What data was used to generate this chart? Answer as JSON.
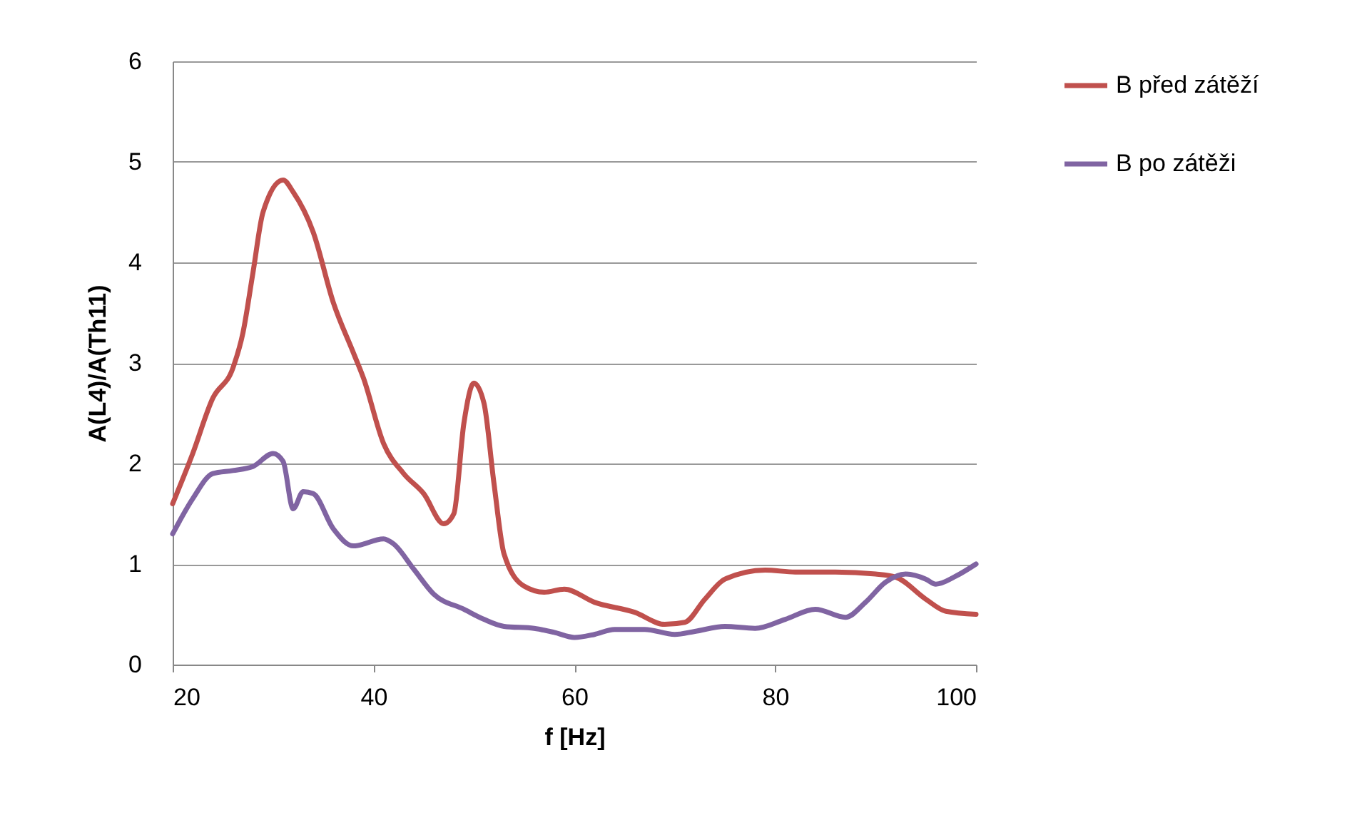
{
  "chart_data": {
    "type": "line",
    "xlabel": "f [Hz]",
    "ylabel": "A(L4)/A(Th11)",
    "xlim": [
      20,
      100
    ],
    "xticks": [
      20,
      40,
      60,
      80,
      100
    ],
    "ylim": [
      0,
      6
    ],
    "yticks": [
      0,
      1,
      2,
      3,
      4,
      5,
      6
    ],
    "grid": "y",
    "legend": "right",
    "marker": "none",
    "line_style": "solid",
    "series": [
      {
        "name": "B před zátěží",
        "color": "#c0504d",
        "x": [
          20,
          22,
          24,
          26,
          27,
          28,
          29,
          31,
          32,
          34,
          36,
          38,
          39,
          41,
          43,
          45,
          47,
          48,
          49,
          50,
          51,
          52,
          53,
          55,
          57,
          59,
          62,
          66,
          69,
          71,
          73,
          75,
          79,
          82,
          86,
          90,
          92,
          95,
          97,
          100
        ],
        "values": [
          1.6,
          2.1,
          2.65,
          2.95,
          3.3,
          3.9,
          4.5,
          4.82,
          4.7,
          4.3,
          3.6,
          3.1,
          2.85,
          2.2,
          1.9,
          1.7,
          1.4,
          1.5,
          2.4,
          2.8,
          2.6,
          1.8,
          1.1,
          0.78,
          0.72,
          0.75,
          0.62,
          0.52,
          0.4,
          0.42,
          0.65,
          0.85,
          0.94,
          0.92,
          0.92,
          0.9,
          0.87,
          0.65,
          0.53,
          0.5
        ]
      },
      {
        "name": "B po zátěži",
        "color": "#8064a2",
        "x": [
          20,
          22,
          24,
          26,
          28,
          30,
          31,
          32,
          33,
          34,
          36,
          38,
          41,
          42,
          44,
          46,
          49,
          51,
          53,
          56,
          58,
          60,
          62,
          64,
          67,
          70,
          72,
          75,
          78,
          81,
          84,
          87,
          89,
          91,
          93,
          95,
          96,
          98,
          100
        ],
        "values": [
          1.3,
          1.65,
          1.9,
          1.93,
          1.97,
          2.1,
          2.02,
          1.55,
          1.72,
          1.7,
          1.35,
          1.18,
          1.25,
          1.2,
          0.95,
          0.7,
          0.55,
          0.45,
          0.38,
          0.36,
          0.32,
          0.27,
          0.3,
          0.35,
          0.35,
          0.3,
          0.33,
          0.38,
          0.36,
          0.45,
          0.55,
          0.47,
          0.62,
          0.82,
          0.9,
          0.85,
          0.8,
          0.88,
          1.0
        ]
      }
    ]
  }
}
